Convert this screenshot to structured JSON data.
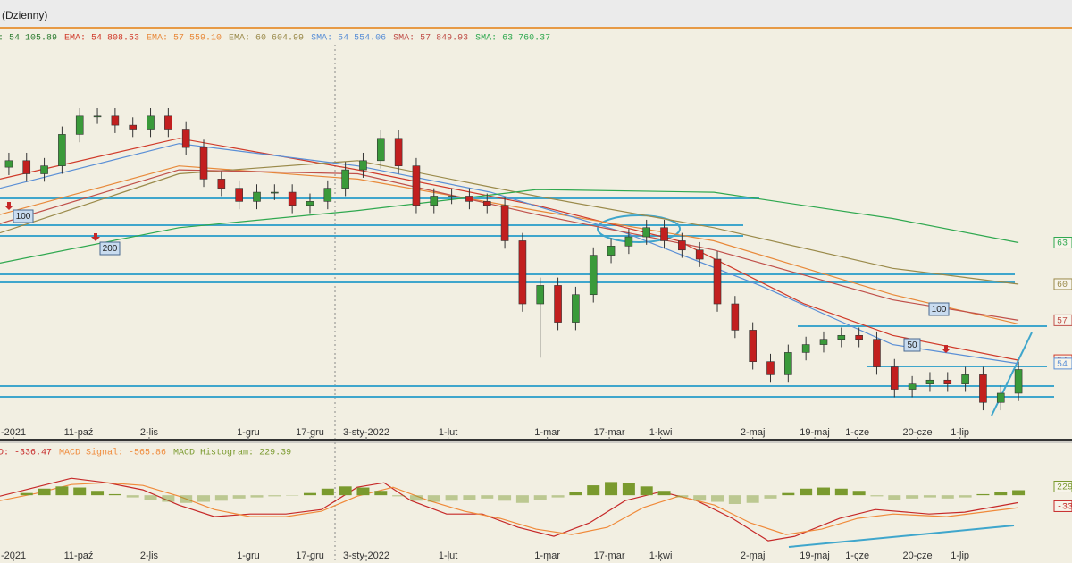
{
  "window": {
    "title": "(Dzienny)"
  },
  "annotations": {
    "boxes": [
      "100",
      "200",
      "100",
      "50"
    ]
  },
  "chart_data": [
    {
      "type": "candlestick",
      "name": ": 54 105.89",
      "color": "#2e7d32",
      "up_color": "#3a9a3a",
      "down_color": "#c21f1f",
      "xlim": [
        0,
        58
      ],
      "ylim": [
        48.76,
        78.83
      ],
      "xticks": [
        {
          "value": 0.76,
          "label": "-2021"
        },
        {
          "value": 4.44,
          "label": "11-paź"
        },
        {
          "value": 8.42,
          "label": "2-lis"
        },
        {
          "value": 14.02,
          "label": "1-gru"
        },
        {
          "value": 17.5,
          "label": "17-gru"
        },
        {
          "value": 20.68,
          "label": "3-sty-2022"
        },
        {
          "value": 25.3,
          "label": "1-lut"
        },
        {
          "value": 30.9,
          "label": "1-mar"
        },
        {
          "value": 34.4,
          "label": "17-mar"
        },
        {
          "value": 37.3,
          "label": "1-kwi"
        },
        {
          "value": 42.5,
          "label": "2-maj"
        },
        {
          "value": 46.0,
          "label": "19-maj"
        },
        {
          "value": 48.4,
          "label": "1-cze"
        },
        {
          "value": 51.8,
          "label": "20-cze"
        },
        {
          "value": 54.2,
          "label": "1-lip"
        }
      ],
      "open": [
        69.5,
        70.0,
        69.0,
        69.6,
        72.0,
        73.4,
        73.4,
        72.7,
        72.4,
        73.4,
        72.4,
        71.0,
        68.6,
        67.9,
        66.9,
        67.6,
        67.6,
        66.6,
        66.9,
        67.9,
        69.3,
        70.0,
        71.7,
        69.6,
        66.6,
        67.3,
        67.3,
        66.9,
        66.6,
        63.9,
        59.1,
        60.5,
        57.7,
        59.8,
        62.8,
        63.5,
        64.2,
        64.9,
        63.9,
        63.2,
        62.5,
        59.1,
        57.1,
        54.7,
        53.7,
        55.4,
        56.0,
        56.4,
        56.7,
        56.4,
        54.3,
        52.6,
        53.0,
        53.3,
        53.0,
        53.7,
        51.6,
        52.3
      ],
      "high": [
        70.6,
        70.6,
        70.2,
        72.6,
        74.0,
        74.0,
        74.0,
        73.3,
        74.0,
        74.0,
        73.0,
        71.6,
        69.2,
        68.5,
        68.2,
        68.2,
        68.2,
        67.5,
        68.5,
        69.9,
        70.6,
        72.3,
        72.3,
        70.2,
        67.9,
        67.9,
        67.9,
        67.5,
        67.2,
        64.5,
        61.1,
        61.1,
        60.4,
        63.4,
        64.1,
        64.8,
        65.5,
        65.5,
        64.5,
        63.8,
        63.1,
        59.7,
        57.7,
        55.3,
        56.0,
        56.6,
        57.0,
        57.3,
        57.3,
        57.0,
        54.9,
        53.6,
        53.9,
        53.9,
        54.3,
        54.3,
        52.9,
        54.7
      ],
      "low": [
        68.9,
        68.4,
        68.4,
        69.0,
        71.4,
        72.8,
        72.1,
        71.8,
        71.8,
        71.8,
        70.4,
        68.0,
        67.3,
        66.3,
        66.3,
        67.0,
        66.0,
        66.0,
        66.3,
        67.3,
        68.7,
        69.4,
        69.0,
        66.0,
        66.0,
        66.7,
        66.3,
        66.0,
        63.3,
        58.5,
        55.0,
        57.1,
        57.1,
        59.2,
        62.2,
        62.9,
        63.6,
        63.3,
        62.6,
        61.9,
        58.5,
        56.5,
        54.1,
        53.1,
        53.1,
        54.8,
        55.4,
        55.8,
        55.8,
        53.7,
        52.0,
        52.0,
        52.4,
        52.4,
        52.4,
        51.0,
        51.0,
        51.7
      ],
      "close": [
        70.0,
        69.0,
        69.6,
        72.0,
        73.4,
        73.4,
        72.7,
        72.4,
        73.4,
        72.4,
        71.0,
        68.6,
        67.9,
        66.9,
        67.6,
        67.6,
        66.6,
        66.9,
        67.9,
        69.3,
        70.0,
        71.7,
        69.6,
        66.6,
        67.3,
        67.3,
        66.9,
        66.6,
        63.9,
        59.1,
        60.5,
        57.7,
        59.8,
        62.8,
        63.5,
        64.2,
        64.9,
        63.9,
        63.2,
        62.5,
        59.1,
        57.1,
        54.7,
        53.7,
        55.4,
        56.0,
        56.4,
        56.7,
        56.4,
        54.3,
        52.6,
        53.0,
        53.3,
        53.0,
        53.7,
        51.6,
        52.3,
        54.1
      ],
      "series": [
        {
          "name": "EMA: 54 808.53",
          "color": "#d03a2a",
          "tag": "54",
          "x": [
            0,
            10.1,
            20.2,
            30.3,
            38.3,
            45.4,
            50.4,
            57.5
          ],
          "values": [
            68.6,
            71.7,
            69.3,
            66.6,
            63.9,
            59.1,
            56.7,
            54.81
          ]
        },
        {
          "name": "EMA: 57 559.10",
          "color": "#e8893a",
          "x": [
            0,
            10.1,
            20.2,
            30.3,
            40.3,
            50.4,
            57.5
          ],
          "values": [
            65.9,
            69.6,
            68.6,
            66.2,
            63.9,
            59.8,
            57.56
          ]
        },
        {
          "name": "EMA: 60 604.99",
          "color": "#9a8a4a",
          "tag": "60",
          "x": [
            0,
            10.1,
            20.2,
            30.3,
            40.3,
            50.4,
            57.5
          ],
          "values": [
            64.5,
            69.0,
            70.0,
            67.3,
            64.9,
            61.8,
            60.6
          ]
        },
        {
          "name": "SMA: 54 554.06",
          "color": "#5a8fd6",
          "tag": "54",
          "x": [
            0,
            10.1,
            20.2,
            27.7,
            35.3,
            42.9,
            50.4,
            57.5
          ],
          "values": [
            67.9,
            71.3,
            69.6,
            67.6,
            64.5,
            60.5,
            56.0,
            54.55
          ]
        },
        {
          "name": "SMA: 57 849.93",
          "color": "#c0504a",
          "tag": "57",
          "x": [
            0,
            10.1,
            20.2,
            30.3,
            40.3,
            50.4,
            57.5
          ],
          "values": [
            65.2,
            69.3,
            69.0,
            65.9,
            63.2,
            59.4,
            57.85
          ]
        },
        {
          "name": "SMA: 63 760.37",
          "color": "#2fa84f",
          "tag": "63",
          "x": [
            0,
            10.1,
            20.2,
            30.3,
            40.3,
            50.4,
            57.5
          ],
          "values": [
            62.2,
            64.9,
            66.2,
            67.8,
            67.6,
            65.6,
            63.76
          ]
        }
      ]
    },
    {
      "type": "macd",
      "xlim": [
        0,
        58
      ],
      "ylim": [
        -3000,
        2200
      ],
      "xticks": [
        {
          "value": 0.76,
          "label": "-2021"
        },
        {
          "value": 4.44,
          "label": "11-paź"
        },
        {
          "value": 8.42,
          "label": "2-lis"
        },
        {
          "value": 14.02,
          "label": "1-gru"
        },
        {
          "value": 17.5,
          "label": "17-gru"
        },
        {
          "value": 20.68,
          "label": "3-sty-2022"
        },
        {
          "value": 25.3,
          "label": "1-lut"
        },
        {
          "value": 30.9,
          "label": "1-mar"
        },
        {
          "value": 34.4,
          "label": "17-mar"
        },
        {
          "value": 37.3,
          "label": "1-kwi"
        },
        {
          "value": 42.5,
          "label": "2-maj"
        },
        {
          "value": 46.0,
          "label": "19-maj"
        },
        {
          "value": 48.4,
          "label": "1-cze"
        },
        {
          "value": 51.8,
          "label": "20-cze"
        },
        {
          "value": 54.2,
          "label": "1-lip"
        }
      ],
      "series": [
        {
          "name": "D: -336.47",
          "color": "#c62828",
          "tag": "-33",
          "x": [
            0,
            2.02,
            4.03,
            6.05,
            8.07,
            10.09,
            12.1,
            14.12,
            16.14,
            18.15,
            20.17,
            21.68,
            23.2,
            25.21,
            27.23,
            29.25,
            31.27,
            33.28,
            35.3,
            37.32,
            39.33,
            41.35,
            43.37,
            44.88,
            47.4,
            49.42,
            52.45,
            54.46,
            57.49
          ],
          "values": [
            -41,
            365,
            771,
            568,
            244,
            -447,
            -974,
            -853,
            -853,
            -650,
            365,
            568,
            -244,
            -853,
            -853,
            -1462,
            -1868,
            -1259,
            -244,
            162,
            -244,
            -1056,
            -2071,
            -1868,
            -1056,
            -650,
            -853,
            -771,
            -336.47
          ]
        },
        {
          "name": "MACD Signal: -565.86",
          "color": "#f08a3a",
          "x": [
            0,
            2.02,
            4.03,
            6.05,
            8.07,
            10.09,
            12.1,
            14.12,
            16.14,
            18.15,
            20.17,
            22.19,
            24.21,
            26.22,
            28.24,
            30.26,
            32.27,
            34.29,
            36.31,
            38.33,
            40.34,
            42.36,
            44.38,
            46.39,
            48.41,
            50.43,
            53.45,
            57.49
          ],
          "values": [
            -244,
            81,
            487,
            568,
            447,
            -41,
            -650,
            -974,
            -974,
            -731,
            -41,
            365,
            -244,
            -731,
            -1056,
            -1543,
            -1786,
            -1462,
            -568,
            -41,
            -447,
            -1259,
            -1786,
            -1543,
            -1056,
            -853,
            -974,
            -565.86
          ]
        },
        {
          "name": "MACD Histogram: 229.39",
          "color": "#7a9a2e",
          "tag": "229",
          "bars": true,
          "values": [
            0,
            100,
            300,
            400,
            350,
            200,
            50,
            -100,
            -200,
            -300,
            -350,
            -300,
            -250,
            -150,
            -100,
            -50,
            -20,
            100,
            300,
            400,
            350,
            200,
            -50,
            -250,
            -300,
            -250,
            -200,
            -150,
            -250,
            -350,
            -200,
            -100,
            150,
            450,
            600,
            550,
            400,
            200,
            -100,
            -250,
            -300,
            -400,
            -350,
            -150,
            100,
            300,
            350,
            300,
            200,
            -50,
            -200,
            -150,
            -100,
            -150,
            -100,
            50,
            150,
            229.39
          ]
        }
      ]
    }
  ]
}
